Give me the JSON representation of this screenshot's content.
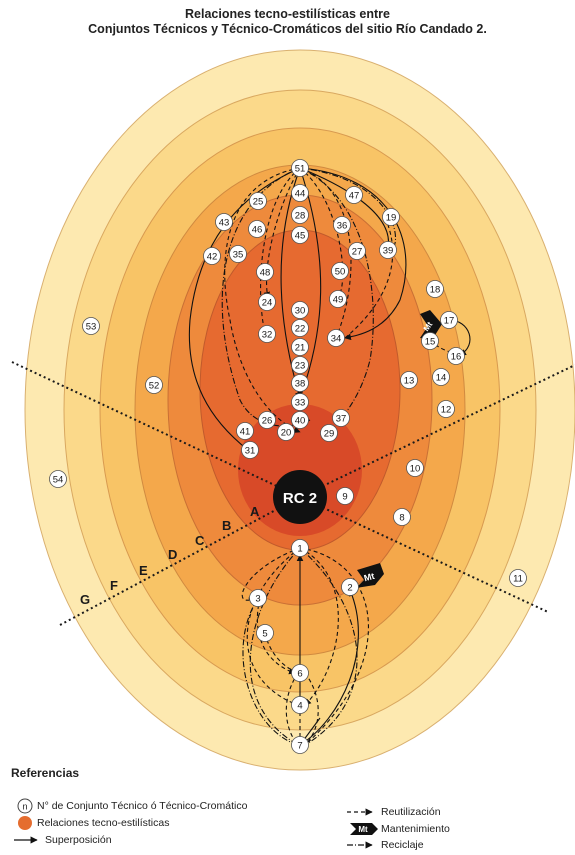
{
  "title": {
    "line1": "Relaciones tecno-estilísticas entre",
    "line2": "Conjuntos Técnicos y Técnico-Cromáticos del sitio Río Candado 2."
  },
  "center_label": "RC 2",
  "zone_letters": [
    "A",
    "B",
    "C",
    "D",
    "E",
    "F",
    "G"
  ],
  "nodes": [
    "1",
    "2",
    "3",
    "4",
    "5",
    "6",
    "7",
    "8",
    "9",
    "10",
    "11",
    "12",
    "13",
    "14",
    "15",
    "16",
    "17",
    "18",
    "19",
    "20",
    "21",
    "22",
    "23",
    "24",
    "25",
    "26",
    "27",
    "28",
    "29",
    "30",
    "31",
    "32",
    "33",
    "34",
    "35",
    "36",
    "37",
    "38",
    "39",
    "40",
    "41",
    "42",
    "43",
    "44",
    "45",
    "46",
    "47",
    "48",
    "49",
    "50",
    "51",
    "52",
    "53",
    "54"
  ],
  "maintenance_label": "Mt",
  "legend": {
    "title": "Referencias",
    "node_symbol": "n",
    "node_text": "N° de Conjunto Técnico ó Técnico-Cromático",
    "area_text": "Relaciones tecno-estilísticas",
    "superposition_text": "Superposición",
    "reuse_text": "Reutilización",
    "maintenance_text": "Mantenimiento",
    "recycling_text": "Reciclaje"
  },
  "colors": {
    "ring_G": "#fde9b0",
    "ring_F": "#fbd98a",
    "ring_E": "#f8c466",
    "ring_D": "#f4a84b",
    "ring_C": "#ee8a3c",
    "ring_B": "#e66a30",
    "ring_A": "#d84a28",
    "center": "#111111"
  }
}
